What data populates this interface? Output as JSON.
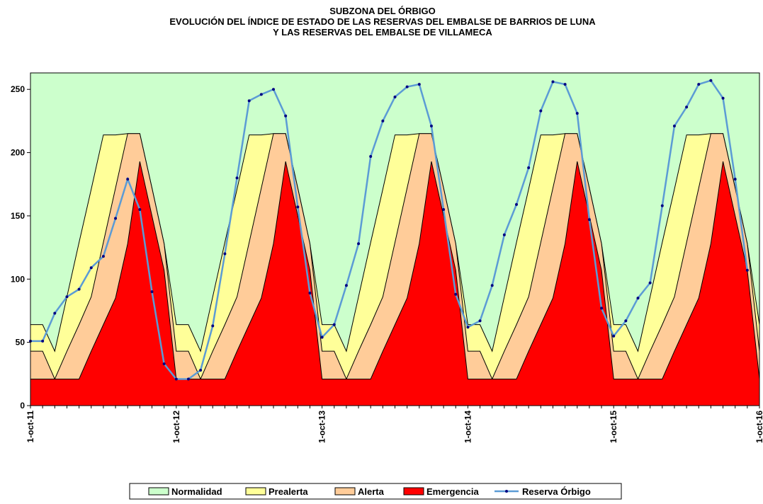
{
  "chart_data": {
    "type": "area",
    "title": [
      "SUBZONA DEL ÓRBIGO",
      "EVOLUCIÓN DEL ÍNDICE DE ESTADO DE LAS RESERVAS DEL EMBALSE DE BARRIOS DE LUNA",
      "Y LAS RESERVAS DEL EMBALSE DE VILLAMECA"
    ],
    "categories": [
      "1-oct-11",
      null,
      null,
      null,
      null,
      null,
      null,
      null,
      null,
      null,
      null,
      null,
      "1-oct-12",
      null,
      null,
      null,
      null,
      null,
      null,
      null,
      null,
      null,
      null,
      null,
      "1-oct-13",
      null,
      null,
      null,
      null,
      null,
      null,
      null,
      null,
      null,
      null,
      null,
      "1-oct-14",
      null,
      null,
      null,
      null,
      null,
      null,
      null,
      null,
      null,
      null,
      null,
      "1-oct-15",
      null,
      null,
      null,
      null,
      null,
      null,
      null,
      null,
      null,
      null,
      null,
      "1-oct-16"
    ],
    "ylim": [
      0,
      263
    ],
    "yticks": [
      0,
      50,
      100,
      150,
      200,
      250
    ],
    "plot_background": "#ccffcc",
    "series": [
      {
        "name": "Normalidad",
        "color": "#ccffcc"
      },
      {
        "name": "Prealerta",
        "color": "#ffff99",
        "values": [
          64,
          64,
          43,
          86,
          129,
          171,
          214,
          214,
          215,
          215,
          172,
          128,
          64,
          64,
          43,
          86,
          129,
          171,
          214,
          214,
          215,
          215,
          172,
          128,
          64,
          64,
          43,
          86,
          129,
          171,
          214,
          214,
          215,
          215,
          172,
          128,
          64,
          64,
          43,
          86,
          129,
          171,
          214,
          214,
          215,
          215,
          172,
          128,
          64,
          64,
          43,
          86,
          129,
          171,
          214,
          214,
          215,
          215,
          172,
          128,
          64
        ]
      },
      {
        "name": "Alerta",
        "color": "#ffcc99",
        "values": [
          43,
          43,
          21,
          43,
          64,
          86,
          129,
          172,
          215,
          215,
          172,
          128,
          43,
          43,
          21,
          43,
          64,
          86,
          129,
          172,
          215,
          215,
          172,
          128,
          43,
          43,
          21,
          43,
          64,
          86,
          129,
          172,
          215,
          215,
          172,
          128,
          43,
          43,
          21,
          43,
          64,
          86,
          129,
          172,
          215,
          215,
          172,
          128,
          43,
          43,
          21,
          43,
          64,
          86,
          129,
          172,
          215,
          215,
          172,
          128,
          43
        ]
      },
      {
        "name": "Emergencia",
        "color": "#ff0000",
        "values": [
          21,
          21,
          21,
          21,
          21,
          43,
          64,
          85,
          128,
          193,
          150,
          107,
          21,
          21,
          21,
          21,
          21,
          43,
          64,
          85,
          128,
          193,
          150,
          107,
          21,
          21,
          21,
          21,
          21,
          43,
          64,
          85,
          128,
          193,
          150,
          107,
          21,
          21,
          21,
          21,
          21,
          43,
          64,
          85,
          128,
          193,
          150,
          107,
          21,
          21,
          21,
          21,
          21,
          43,
          64,
          85,
          128,
          193,
          150,
          107,
          21
        ]
      },
      {
        "name": "Reserva Órbigo",
        "color": "#5b9bd5",
        "marker_color": "#000080",
        "type": "line",
        "values": [
          51,
          51,
          73,
          86,
          92,
          109,
          118,
          148,
          179,
          155,
          90,
          33,
          21,
          21,
          28,
          63,
          120,
          180,
          241,
          246,
          250,
          229,
          157,
          89,
          54,
          64,
          95,
          128,
          197,
          225,
          244,
          252,
          254,
          221,
          155,
          88,
          62,
          67,
          95,
          135,
          159,
          188,
          233,
          256,
          254,
          231,
          147,
          77,
          55,
          67,
          85,
          97,
          158,
          221,
          236,
          254,
          257,
          243,
          179,
          107,
          null
        ]
      }
    ]
  }
}
